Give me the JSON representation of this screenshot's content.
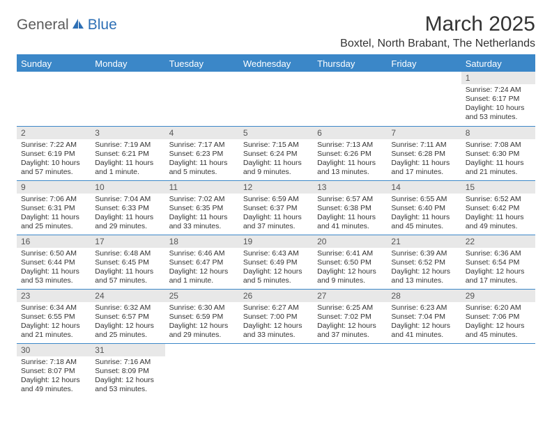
{
  "logo": {
    "text1": "General",
    "text2": "Blue"
  },
  "title": "March 2025",
  "location": "Boxtel, North Brabant, The Netherlands",
  "colors": {
    "accent": "#3b87c8",
    "header_bg": "#3b87c8",
    "header_text": "#ffffff",
    "daynum_bg": "#e8e8e8",
    "daynum_text": "#555555",
    "body_text": "#333333",
    "logo_gray": "#5a5a5a",
    "logo_blue": "#2d6fb5",
    "background": "#ffffff"
  },
  "day_headers": [
    "Sunday",
    "Monday",
    "Tuesday",
    "Wednesday",
    "Thursday",
    "Friday",
    "Saturday"
  ],
  "weeks": [
    [
      null,
      null,
      null,
      null,
      null,
      null,
      {
        "n": "1",
        "sunrise": "Sunrise: 7:24 AM",
        "sunset": "Sunset: 6:17 PM",
        "daylight": "Daylight: 10 hours and 53 minutes."
      }
    ],
    [
      {
        "n": "2",
        "sunrise": "Sunrise: 7:22 AM",
        "sunset": "Sunset: 6:19 PM",
        "daylight": "Daylight: 10 hours and 57 minutes."
      },
      {
        "n": "3",
        "sunrise": "Sunrise: 7:19 AM",
        "sunset": "Sunset: 6:21 PM",
        "daylight": "Daylight: 11 hours and 1 minute."
      },
      {
        "n": "4",
        "sunrise": "Sunrise: 7:17 AM",
        "sunset": "Sunset: 6:23 PM",
        "daylight": "Daylight: 11 hours and 5 minutes."
      },
      {
        "n": "5",
        "sunrise": "Sunrise: 7:15 AM",
        "sunset": "Sunset: 6:24 PM",
        "daylight": "Daylight: 11 hours and 9 minutes."
      },
      {
        "n": "6",
        "sunrise": "Sunrise: 7:13 AM",
        "sunset": "Sunset: 6:26 PM",
        "daylight": "Daylight: 11 hours and 13 minutes."
      },
      {
        "n": "7",
        "sunrise": "Sunrise: 7:11 AM",
        "sunset": "Sunset: 6:28 PM",
        "daylight": "Daylight: 11 hours and 17 minutes."
      },
      {
        "n": "8",
        "sunrise": "Sunrise: 7:08 AM",
        "sunset": "Sunset: 6:30 PM",
        "daylight": "Daylight: 11 hours and 21 minutes."
      }
    ],
    [
      {
        "n": "9",
        "sunrise": "Sunrise: 7:06 AM",
        "sunset": "Sunset: 6:31 PM",
        "daylight": "Daylight: 11 hours and 25 minutes."
      },
      {
        "n": "10",
        "sunrise": "Sunrise: 7:04 AM",
        "sunset": "Sunset: 6:33 PM",
        "daylight": "Daylight: 11 hours and 29 minutes."
      },
      {
        "n": "11",
        "sunrise": "Sunrise: 7:02 AM",
        "sunset": "Sunset: 6:35 PM",
        "daylight": "Daylight: 11 hours and 33 minutes."
      },
      {
        "n": "12",
        "sunrise": "Sunrise: 6:59 AM",
        "sunset": "Sunset: 6:37 PM",
        "daylight": "Daylight: 11 hours and 37 minutes."
      },
      {
        "n": "13",
        "sunrise": "Sunrise: 6:57 AM",
        "sunset": "Sunset: 6:38 PM",
        "daylight": "Daylight: 11 hours and 41 minutes."
      },
      {
        "n": "14",
        "sunrise": "Sunrise: 6:55 AM",
        "sunset": "Sunset: 6:40 PM",
        "daylight": "Daylight: 11 hours and 45 minutes."
      },
      {
        "n": "15",
        "sunrise": "Sunrise: 6:52 AM",
        "sunset": "Sunset: 6:42 PM",
        "daylight": "Daylight: 11 hours and 49 minutes."
      }
    ],
    [
      {
        "n": "16",
        "sunrise": "Sunrise: 6:50 AM",
        "sunset": "Sunset: 6:44 PM",
        "daylight": "Daylight: 11 hours and 53 minutes."
      },
      {
        "n": "17",
        "sunrise": "Sunrise: 6:48 AM",
        "sunset": "Sunset: 6:45 PM",
        "daylight": "Daylight: 11 hours and 57 minutes."
      },
      {
        "n": "18",
        "sunrise": "Sunrise: 6:46 AM",
        "sunset": "Sunset: 6:47 PM",
        "daylight": "Daylight: 12 hours and 1 minute."
      },
      {
        "n": "19",
        "sunrise": "Sunrise: 6:43 AM",
        "sunset": "Sunset: 6:49 PM",
        "daylight": "Daylight: 12 hours and 5 minutes."
      },
      {
        "n": "20",
        "sunrise": "Sunrise: 6:41 AM",
        "sunset": "Sunset: 6:50 PM",
        "daylight": "Daylight: 12 hours and 9 minutes."
      },
      {
        "n": "21",
        "sunrise": "Sunrise: 6:39 AM",
        "sunset": "Sunset: 6:52 PM",
        "daylight": "Daylight: 12 hours and 13 minutes."
      },
      {
        "n": "22",
        "sunrise": "Sunrise: 6:36 AM",
        "sunset": "Sunset: 6:54 PM",
        "daylight": "Daylight: 12 hours and 17 minutes."
      }
    ],
    [
      {
        "n": "23",
        "sunrise": "Sunrise: 6:34 AM",
        "sunset": "Sunset: 6:55 PM",
        "daylight": "Daylight: 12 hours and 21 minutes."
      },
      {
        "n": "24",
        "sunrise": "Sunrise: 6:32 AM",
        "sunset": "Sunset: 6:57 PM",
        "daylight": "Daylight: 12 hours and 25 minutes."
      },
      {
        "n": "25",
        "sunrise": "Sunrise: 6:30 AM",
        "sunset": "Sunset: 6:59 PM",
        "daylight": "Daylight: 12 hours and 29 minutes."
      },
      {
        "n": "26",
        "sunrise": "Sunrise: 6:27 AM",
        "sunset": "Sunset: 7:00 PM",
        "daylight": "Daylight: 12 hours and 33 minutes."
      },
      {
        "n": "27",
        "sunrise": "Sunrise: 6:25 AM",
        "sunset": "Sunset: 7:02 PM",
        "daylight": "Daylight: 12 hours and 37 minutes."
      },
      {
        "n": "28",
        "sunrise": "Sunrise: 6:23 AM",
        "sunset": "Sunset: 7:04 PM",
        "daylight": "Daylight: 12 hours and 41 minutes."
      },
      {
        "n": "29",
        "sunrise": "Sunrise: 6:20 AM",
        "sunset": "Sunset: 7:06 PM",
        "daylight": "Daylight: 12 hours and 45 minutes."
      }
    ],
    [
      {
        "n": "30",
        "sunrise": "Sunrise: 7:18 AM",
        "sunset": "Sunset: 8:07 PM",
        "daylight": "Daylight: 12 hours and 49 minutes."
      },
      {
        "n": "31",
        "sunrise": "Sunrise: 7:16 AM",
        "sunset": "Sunset: 8:09 PM",
        "daylight": "Daylight: 12 hours and 53 minutes."
      },
      null,
      null,
      null,
      null,
      null
    ]
  ]
}
